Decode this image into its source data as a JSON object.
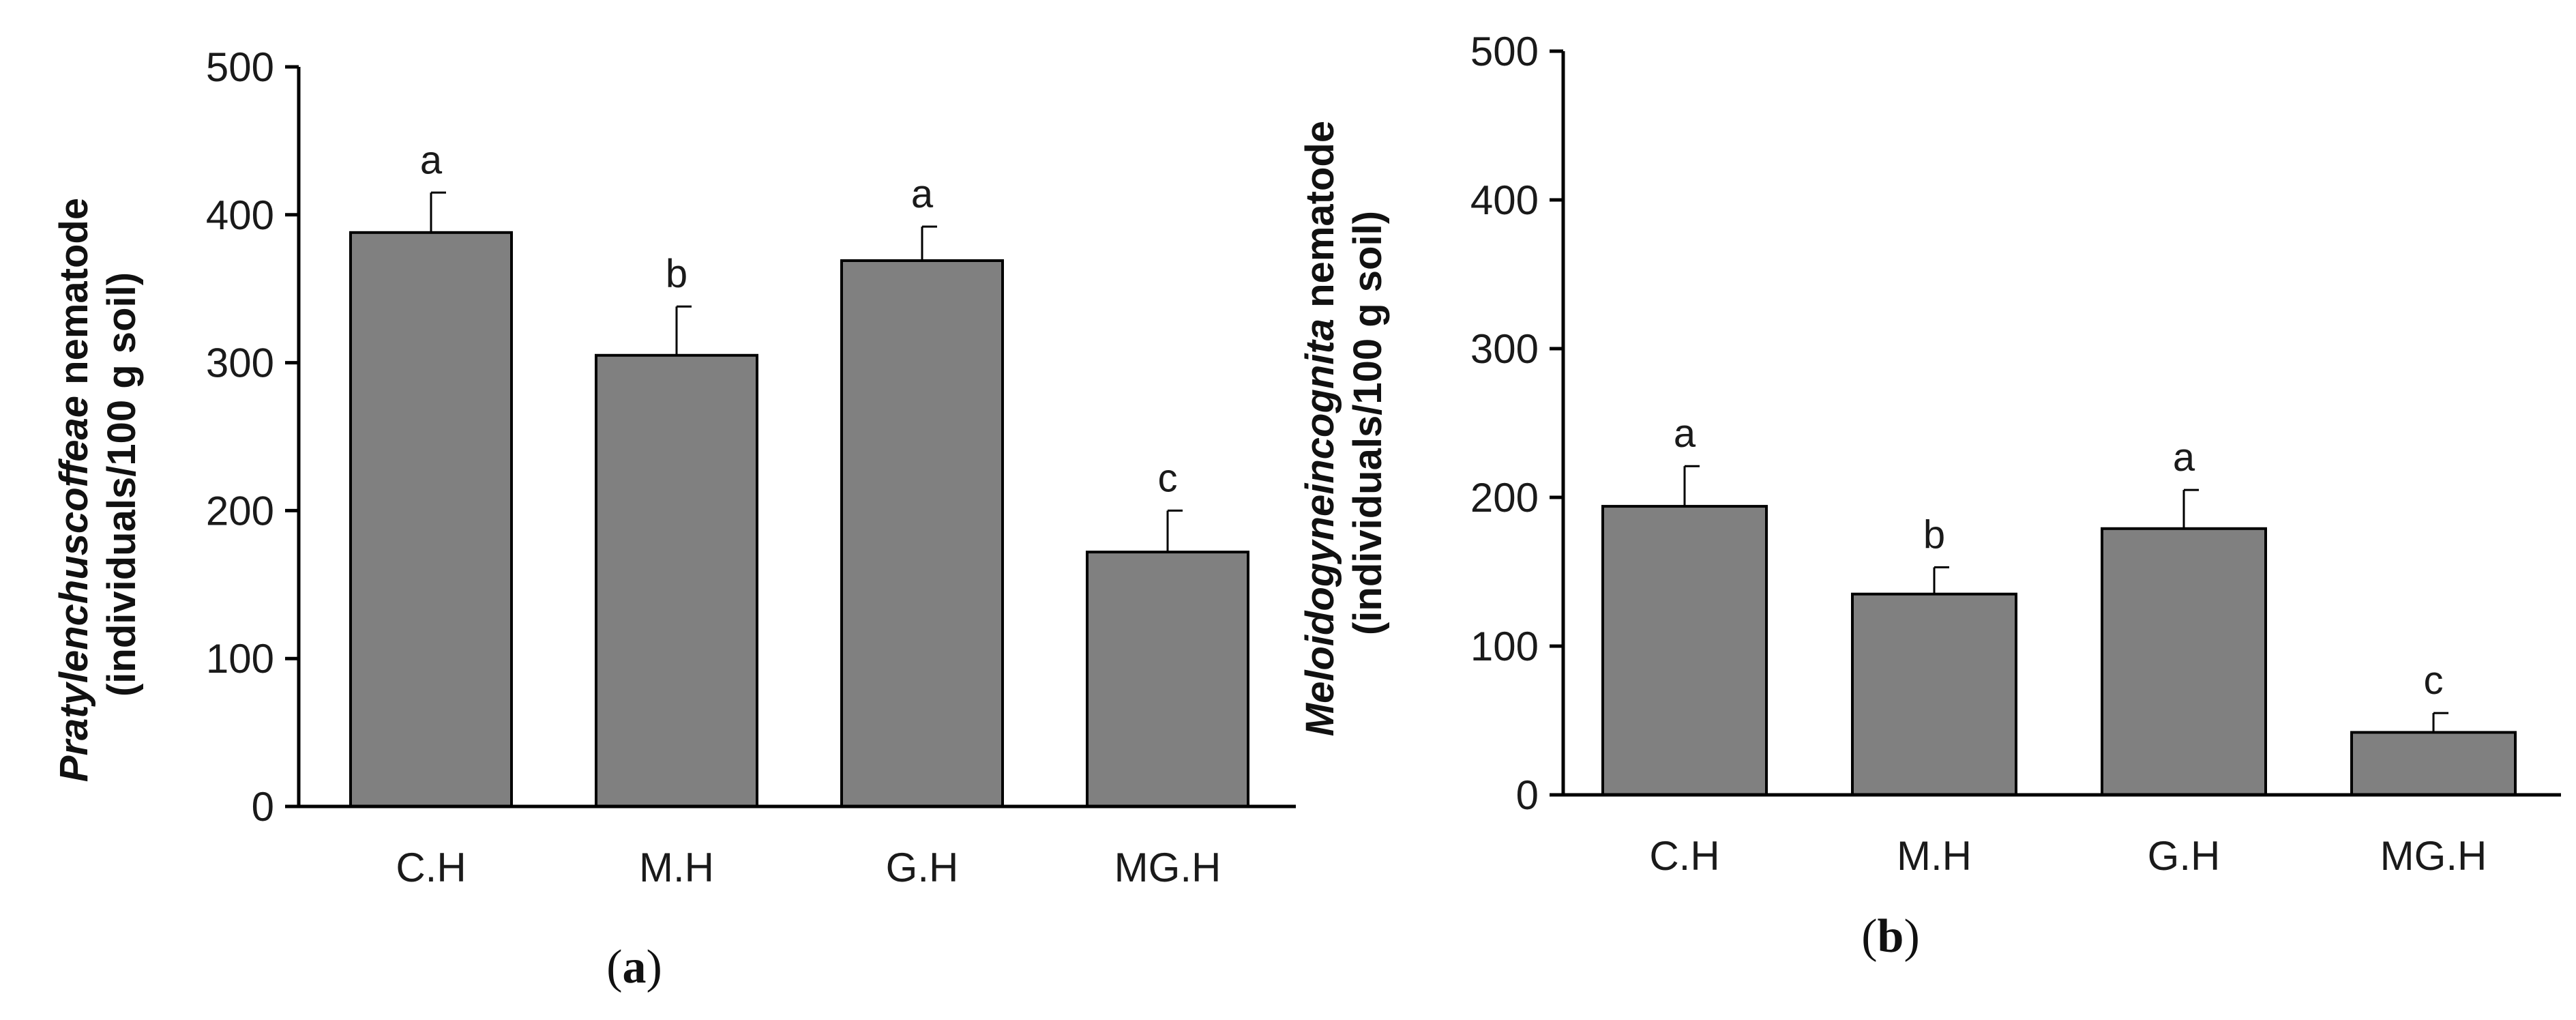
{
  "colors": {
    "bar_fill": "#808080",
    "bar_stroke": "#000000",
    "axis": "#000000"
  },
  "chart_data": [
    {
      "type": "bar",
      "panel_label_open": "(",
      "panel_label_letter": "a",
      "panel_label_close": ")",
      "ylabel_italic": "Pratylenchuscoffeae",
      "ylabel_rest": " nematode",
      "ylabel_line2": "(individuals/100 g soil)",
      "ylim": [
        0,
        500
      ],
      "yticks": [
        0,
        100,
        200,
        300,
        400,
        500
      ],
      "categories": [
        "C.H",
        "M.H",
        "G.H",
        "MG.H"
      ],
      "values": [
        388,
        305,
        369,
        172
      ],
      "errors": [
        27,
        33,
        23,
        28
      ],
      "sig_letters": [
        "a",
        "b",
        "a",
        "c"
      ]
    },
    {
      "type": "bar",
      "panel_label_open": "(",
      "panel_label_letter": "b",
      "panel_label_close": ")",
      "ylabel_italic": "Meloidogyneincognita",
      "ylabel_rest": " nematode",
      "ylabel_line2": "(individuals/100 g soil)",
      "ylim": [
        0,
        500
      ],
      "yticks": [
        0,
        100,
        200,
        300,
        400,
        500
      ],
      "categories": [
        "C.H",
        "M.H",
        "G.H",
        "MG.H"
      ],
      "values": [
        194,
        135,
        179,
        42
      ],
      "errors": [
        27,
        18,
        26,
        13
      ],
      "sig_letters": [
        "a",
        "b",
        "a",
        "c"
      ]
    }
  ]
}
